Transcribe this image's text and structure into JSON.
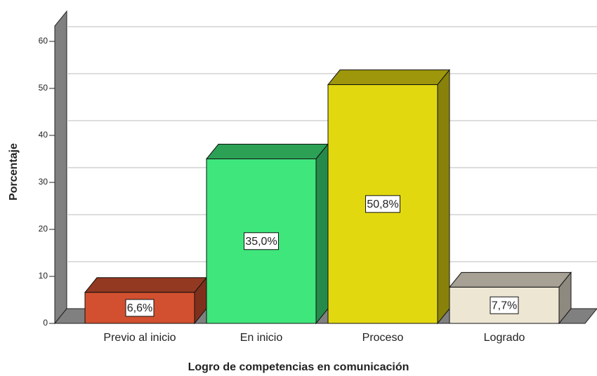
{
  "chart_data": {
    "type": "bar3d",
    "xlabel": "Logro de competencias en comunicación",
    "ylabel": "Porcentaje",
    "categories": [
      "Previo al inicio",
      "En inicio",
      "Proceso",
      "Logrado"
    ],
    "values": [
      6.6,
      35.0,
      50.8,
      7.7
    ],
    "value_labels": [
      "6,6%",
      "35,0%",
      "50,8%",
      "7,7%"
    ],
    "colors": [
      "#d2502f",
      "#3fe67b",
      "#e2d810",
      "#ede6d3"
    ],
    "ylim": [
      0,
      60
    ],
    "yticks": [
      0,
      10,
      20,
      30,
      40,
      50,
      60
    ],
    "grid": true
  }
}
